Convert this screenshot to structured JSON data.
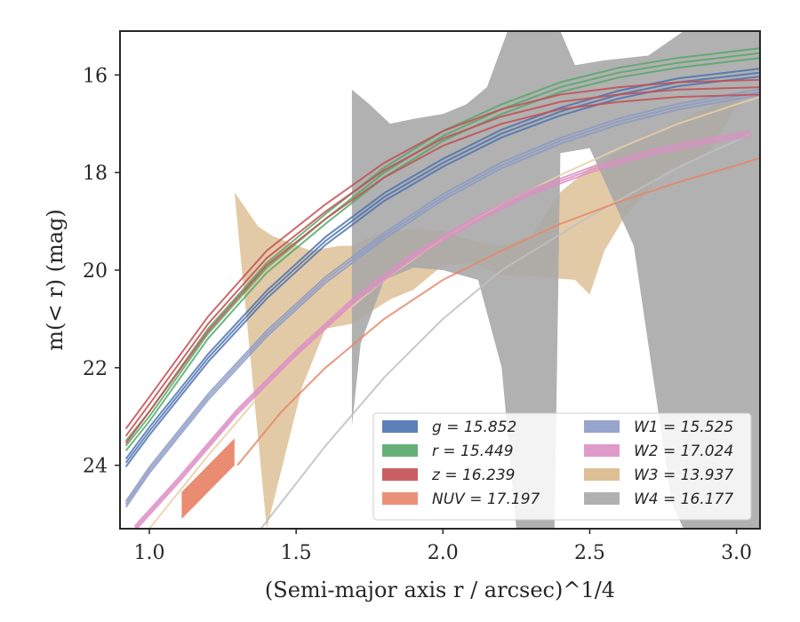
{
  "chart_data": {
    "type": "line",
    "xlabel": "(Semi-major axis r / arcsec)^1/4",
    "ylabel": "m(< r) (mag)",
    "xlim": [
      0.9,
      3.08
    ],
    "ylim": [
      25.3,
      15.1
    ],
    "y_inverted": true,
    "xticks": [
      "1.0",
      "1.5",
      "2.0",
      "2.5",
      "3.0"
    ],
    "yticks": [
      "16",
      "18",
      "20",
      "22",
      "24"
    ],
    "grid": false,
    "legend_position": "lower-right",
    "legend": [
      {
        "id": "g",
        "label": "g = 15.852",
        "color": "#4c72b0"
      },
      {
        "id": "r",
        "label": "r = 15.449",
        "color": "#55a868"
      },
      {
        "id": "z",
        "label": "z = 16.239",
        "color": "#c44e52"
      },
      {
        "id": "NUV",
        "label": "NUV = 17.197",
        "color": "#e8866a"
      },
      {
        "id": "W1",
        "label": "W1 = 15.525",
        "color": "#8c9bc6"
      },
      {
        "id": "W2",
        "label": "W2 = 17.024",
        "color": "#dd8fc4"
      },
      {
        "id": "W3",
        "label": "W3 = 13.937",
        "color": "#d9b88a"
      },
      {
        "id": "W4",
        "label": "W4 = 16.177",
        "color": "#a9a9a9"
      }
    ],
    "bands": [
      {
        "id": "W3",
        "color": "#d9b88a",
        "opacity": 0.75,
        "x": [
          1.29,
          1.29,
          1.37,
          1.42,
          1.55,
          1.65,
          1.69,
          1.69,
          1.8,
          1.9,
          2.0,
          2.1,
          2.2,
          2.3,
          2.4,
          2.5,
          2.6,
          2.7,
          2.75,
          3.0,
          3.05,
          3.05,
          2.9,
          2.75,
          2.68,
          2.62,
          2.55,
          2.5,
          2.45,
          2.35,
          2.2,
          2.1,
          2.0,
          1.9,
          1.82,
          1.69,
          1.69,
          1.6,
          1.52,
          1.4
        ],
        "upper": [
          18.4,
          18.4,
          19.1,
          19.3,
          19.6,
          19.5,
          19.5,
          19.5,
          19.2,
          19.15,
          19.2,
          19.4,
          19.5,
          19.3,
          18.4,
          17.9,
          17.55,
          17.2,
          17.1,
          16.4,
          16.2,
          16.2,
          17.6,
          18.0,
          18.5,
          18.9,
          19.6,
          20.5,
          20.2,
          20.15,
          20.1,
          19.85,
          19.9,
          20.4,
          20.6,
          21.1,
          21.1,
          21.2,
          22.4,
          25.3
        ],
        "lower": []
      },
      {
        "id": "W4",
        "color": "#a9a9a9",
        "opacity": 0.9,
        "x": [
          1.69,
          1.69,
          1.75,
          1.82,
          1.9,
          2.0,
          2.08,
          2.15,
          2.22,
          2.28,
          2.34,
          2.4,
          2.45,
          2.55,
          2.7,
          2.82,
          2.88,
          3.08,
          3.08,
          2.82,
          2.78,
          2.65,
          2.5,
          2.4,
          2.38,
          2.33,
          2.28,
          2.25,
          2.2,
          2.12,
          2.0,
          1.9,
          1.8,
          1.72,
          1.69
        ],
        "upper": [
          16.3,
          16.3,
          16.6,
          17.0,
          16.9,
          16.8,
          16.6,
          16.25,
          15.1,
          15.1,
          15.1,
          15.1,
          15.8,
          15.7,
          15.6,
          15.1,
          15.1,
          15.1,
          25.3,
          25.3,
          24.8,
          19.5,
          17.5,
          17.6,
          25.3,
          25.3,
          25.3,
          25.3,
          22.0,
          20.2,
          20.0,
          19.95,
          20.2,
          21.5,
          23.2
        ],
        "lower": []
      },
      {
        "id": "NUV",
        "color": "#e8866a",
        "opacity": 0.95,
        "x": [
          1.11,
          1.29,
          1.29,
          1.11
        ],
        "upper": [
          24.55,
          23.45,
          24.0,
          25.1
        ],
        "lower": []
      }
    ],
    "series": [
      {
        "id": "W4",
        "color": "#c0c0c0",
        "x": [
          1.38,
          1.6,
          1.8,
          2.0,
          2.2,
          2.5,
          2.8,
          3.05
        ],
        "values": [
          25.3,
          23.6,
          22.2,
          21.0,
          20.0,
          18.9,
          17.9,
          17.2
        ]
      },
      {
        "id": "W3",
        "color": "#e9cfa6",
        "x": [
          1.0,
          1.2,
          1.4,
          1.6,
          1.8,
          2.0,
          2.2,
          2.4,
          2.6,
          2.8,
          3.0,
          3.08
        ],
        "values": [
          25.3,
          23.8,
          22.4,
          21.2,
          20.2,
          19.35,
          18.65,
          18.05,
          17.5,
          17.0,
          16.6,
          16.45
        ]
      },
      {
        "id": "W2",
        "color": "#dd8fc4",
        "x": [
          0.95,
          1.1,
          1.3,
          1.5,
          1.7,
          1.9,
          2.1,
          2.3,
          2.5,
          2.7,
          2.9,
          3.05
        ],
        "values": [
          25.3,
          24.3,
          22.9,
          21.7,
          20.6,
          19.7,
          19.0,
          18.4,
          17.95,
          17.6,
          17.35,
          17.2
        ]
      },
      {
        "id": "NUV",
        "color": "#e8866a",
        "x": [
          1.3,
          1.45,
          1.6,
          1.8,
          2.0,
          2.2,
          2.4,
          2.6,
          2.8,
          3.0,
          3.08
        ],
        "values": [
          24.0,
          22.9,
          22.0,
          21.0,
          20.2,
          19.6,
          19.05,
          18.6,
          18.2,
          17.85,
          17.7
        ]
      },
      {
        "id": "W1",
        "color": "#8c9bc6",
        "x": [
          0.92,
          1.0,
          1.2,
          1.4,
          1.6,
          1.8,
          2.0,
          2.2,
          2.4,
          2.6,
          2.8,
          3.08
        ],
        "values": [
          24.8,
          24.1,
          22.6,
          21.3,
          20.2,
          19.3,
          18.5,
          17.85,
          17.35,
          16.95,
          16.65,
          16.35
        ]
      },
      {
        "id": "g",
        "color": "#4c72b0",
        "x": [
          0.92,
          1.0,
          1.2,
          1.4,
          1.6,
          1.8,
          2.0,
          2.2,
          2.4,
          2.6,
          2.8,
          3.08
        ],
        "values": [
          23.95,
          23.3,
          21.8,
          20.5,
          19.4,
          18.5,
          17.8,
          17.2,
          16.75,
          16.4,
          16.15,
          15.95
        ]
      },
      {
        "id": "r",
        "color": "#55a868",
        "x": [
          0.92,
          1.0,
          1.2,
          1.4,
          1.6,
          1.8,
          2.0,
          2.2,
          2.4,
          2.6,
          2.8,
          3.08
        ],
        "values": [
          23.6,
          23.0,
          21.3,
          19.95,
          18.95,
          18.0,
          17.25,
          16.7,
          16.25,
          15.95,
          15.75,
          15.55
        ]
      },
      {
        "id": "z",
        "color": "#c44e52",
        "x": [
          0.92,
          1.0,
          1.2,
          1.4,
          1.6,
          1.8,
          2.0,
          2.2,
          2.4,
          2.6,
          2.8,
          3.08
        ],
        "values": [
          23.4,
          22.75,
          21.1,
          19.75,
          18.8,
          17.95,
          17.3,
          16.85,
          16.55,
          16.4,
          16.3,
          16.25
        ]
      }
    ],
    "bundle_offsets": {
      "g": [
        0,
        0.08,
        -0.08
      ],
      "r": [
        0,
        0.1,
        -0.1
      ],
      "z": [
        0,
        0.15,
        -0.15
      ],
      "W1": [
        0,
        0.06,
        -0.06
      ],
      "W2": [
        0,
        0.05,
        -0.05
      ]
    }
  }
}
